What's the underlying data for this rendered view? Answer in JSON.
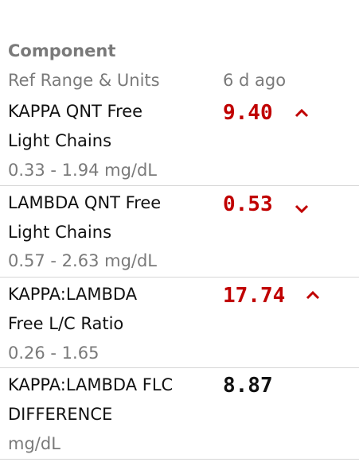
{
  "header": {
    "component": "Component",
    "ref_range": "Ref Range & Units",
    "date": "6 d ago"
  },
  "rows": [
    {
      "name": [
        "KAPPA QNT Free",
        "Light Chains"
      ],
      "ref_range": "0.33 - 1.94 mg/dL",
      "value": "9.40"
    },
    {
      "name": [
        "LAMBDA QNT Free",
        "Light Chains"
      ],
      "ref_range": "0.57 - 2.63 mg/dL",
      "value": "0.53"
    },
    {
      "name": [
        "KAPPA:LAMBDA",
        "Free L/C Ratio"
      ],
      "ref_range": "0.26 - 1.65",
      "value": "17.74"
    },
    {
      "name": [
        "KAPPA:LAMBDA FLC",
        "DIFFERENCE"
      ],
      "ref_range": "mg/dL",
      "value": "8.87"
    }
  ]
}
